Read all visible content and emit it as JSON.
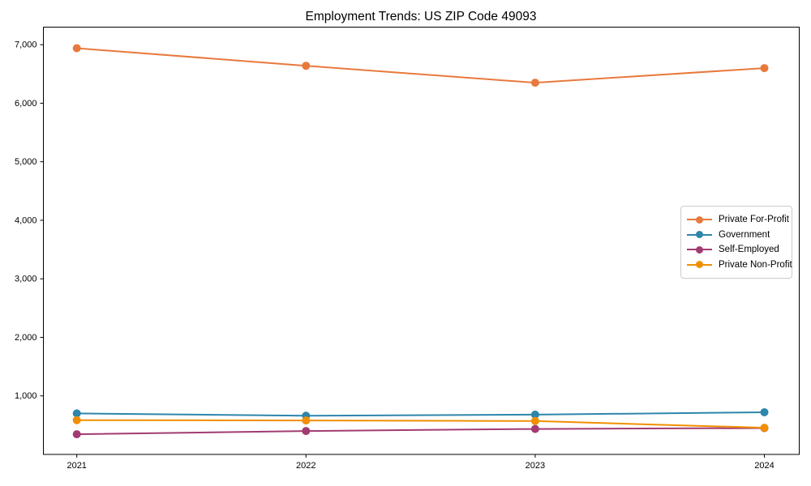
{
  "chart_data": {
    "type": "line",
    "title": "Employment Trends: US ZIP Code 49093",
    "xlabel": "",
    "ylabel": "",
    "x_labels": [
      "2021",
      "2022",
      "2023",
      "2024"
    ],
    "yticks": [
      1000,
      2000,
      3000,
      4000,
      5000,
      6000,
      7000
    ],
    "ytick_labels": [
      "1,000",
      "2,000",
      "3,000",
      "4,000",
      "5,000",
      "6,000",
      "7,000"
    ],
    "ylim": [
      0,
      7300
    ],
    "grid": false,
    "legend_position": "center-right",
    "series": [
      {
        "name": "Private For-Profit",
        "color": "#e8793d",
        "values": [
          6940,
          6640,
          6350,
          6600
        ]
      },
      {
        "name": "Government",
        "color": "#2e86ab",
        "values": [
          700,
          660,
          680,
          720
        ]
      },
      {
        "name": "Self-Employed",
        "color": "#a23b72",
        "values": [
          345,
          400,
          435,
          450
        ]
      },
      {
        "name": "Private Non-Profit",
        "color": "#f18f01",
        "values": [
          585,
          580,
          570,
          455
        ]
      }
    ]
  }
}
